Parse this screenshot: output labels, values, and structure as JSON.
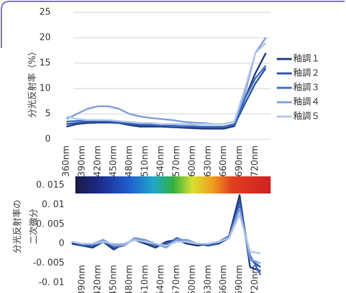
{
  "chart_data": [
    {
      "type": "line",
      "ylabel": "分光反射率（%）",
      "x": [
        360,
        380,
        400,
        420,
        440,
        460,
        480,
        500,
        520,
        540,
        560,
        580,
        600,
        620,
        640,
        660,
        680,
        700,
        720,
        740
      ],
      "xlim": [
        360,
        740
      ],
      "xticks": [
        {
          "value": 360,
          "label": "360nm"
        },
        {
          "value": 390,
          "label": "390nm"
        },
        {
          "value": 420,
          "label": "420nm"
        },
        {
          "value": 450,
          "label": "450nm"
        },
        {
          "value": 480,
          "label": "480nm"
        },
        {
          "value": 510,
          "label": "510nm"
        },
        {
          "value": 540,
          "label": "540nm"
        },
        {
          "value": 570,
          "label": "570nm"
        },
        {
          "value": 600,
          "label": "600nm"
        },
        {
          "value": 630,
          "label": "630nm"
        },
        {
          "value": 660,
          "label": "660nm"
        },
        {
          "value": 690,
          "label": "690nm"
        },
        {
          "value": 720,
          "label": "720nm"
        }
      ],
      "ylim": [
        0,
        25
      ],
      "yticks": [
        0,
        5,
        10,
        15,
        20,
        25
      ],
      "grid": true,
      "legend": "right",
      "series": [
        {
          "name": "釉調１",
          "color": "#1f3a78",
          "values": [
            2.5,
            3,
            3.2,
            3.3,
            3.3,
            3.2,
            2.8,
            2.5,
            2.5,
            2.5,
            2.4,
            2.3,
            2.2,
            2.1,
            2.1,
            2.1,
            2.6,
            8,
            13,
            17
          ]
        },
        {
          "name": "釉調２",
          "color": "#2d56a8",
          "values": [
            3,
            3.2,
            3.4,
            3.5,
            3.4,
            3.2,
            3,
            2.8,
            2.8,
            2.7,
            2.6,
            2.5,
            2.5,
            2.4,
            2.4,
            2.4,
            2.8,
            7,
            11,
            14
          ]
        },
        {
          "name": "釉調３",
          "color": "#3c6cc4",
          "values": [
            3.5,
            3.6,
            3.7,
            3.7,
            3.7,
            3.5,
            3.2,
            3,
            2.9,
            2.8,
            2.7,
            2.6,
            2.6,
            2.5,
            2.5,
            2.5,
            3,
            8,
            12,
            14.5
          ]
        },
        {
          "name": "釉調４",
          "color": "#7f9fd8",
          "values": [
            4,
            5,
            6,
            6.5,
            6.5,
            6,
            5,
            4.5,
            4.2,
            4,
            3.8,
            3.5,
            3.3,
            3.2,
            3,
            3,
            3.5,
            9,
            17,
            20
          ]
        },
        {
          "name": "釉調５",
          "color": "#b4c6ea",
          "values": [
            4.5,
            4,
            3.8,
            3.8,
            3.8,
            3.6,
            3.4,
            3.2,
            3.2,
            3,
            3,
            3,
            3,
            3,
            3,
            3,
            3.5,
            10,
            17,
            19
          ]
        }
      ]
    },
    {
      "type": "line",
      "ylabel": [
        "分光反射率の",
        "二次微分"
      ],
      "x": [
        370,
        390,
        410,
        430,
        450,
        470,
        490,
        510,
        530,
        550,
        570,
        590,
        610,
        630,
        650,
        670,
        690,
        710,
        730
      ],
      "xlim": [
        360,
        740
      ],
      "xticks": [
        {
          "value": 390,
          "label": "390nm"
        },
        {
          "value": 420,
          "label": "420nm"
        },
        {
          "value": 450,
          "label": "450nm"
        },
        {
          "value": 480,
          "label": "480nm"
        },
        {
          "value": 510,
          "label": "510nm"
        },
        {
          "value": 540,
          "label": "540nm"
        },
        {
          "value": 570,
          "label": "570nm"
        },
        {
          "value": 600,
          "label": "600nm"
        },
        {
          "value": 630,
          "label": "630nm"
        },
        {
          "value": 660,
          "label": "660nm"
        },
        {
          "value": 690,
          "label": "690nm"
        },
        {
          "value": 720,
          "label": "720nm"
        }
      ],
      "ylim": [
        -0.0115,
        0.015
      ],
      "yticks": [
        {
          "value": -0.01,
          "label": "-0. 01"
        },
        {
          "value": -0.005,
          "label": "-0. 005"
        },
        0,
        {
          "value": 0.005,
          "label": "0. 005"
        },
        {
          "value": 0.01,
          "label": "0. 01"
        },
        {
          "value": 0.015,
          "label": "0. 015"
        }
      ],
      "grid": false,
      "series": [
        {
          "name": "釉調１",
          "color": "#1f3a78",
          "values": [
            0,
            -0.0005,
            -0.001,
            0.0005,
            -0.0015,
            0,
            0.001,
            0,
            -0.001,
            0.0005,
            0.001,
            0,
            -0.0005,
            0,
            0,
            0.002,
            0.0125,
            -0.006,
            -0.007
          ]
        },
        {
          "name": "釉調２",
          "color": "#2d56a8",
          "values": [
            0.0005,
            -0.0005,
            -0.0005,
            0.001,
            -0.001,
            -0.0005,
            0.0015,
            0.0005,
            -0.0005,
            0,
            0.001,
            0.0005,
            0,
            -0.0005,
            0,
            0.0015,
            0.011,
            -0.004,
            -0.006
          ]
        },
        {
          "name": "釉調３",
          "color": "#3c6cc4",
          "values": [
            0.0005,
            0,
            -0.0005,
            0.0005,
            -0.0005,
            0,
            0.001,
            0.0005,
            -0.0005,
            -0.0005,
            0.0015,
            0.0005,
            0,
            0,
            0.0005,
            0.002,
            0.0095,
            -0.003,
            -0.008
          ]
        },
        {
          "name": "釉調４",
          "color": "#7f9fd8",
          "values": [
            0.0005,
            0,
            0,
            0.001,
            -0.0005,
            -0.0005,
            0.0015,
            0.001,
            0,
            -0.001,
            0.001,
            0.001,
            0,
            0,
            0.0005,
            0.0015,
            0.009,
            -0.004,
            -0.005
          ]
        },
        {
          "name": "釉調５",
          "color": "#b4c6ea",
          "values": [
            0.0005,
            0,
            0,
            0.0005,
            0,
            0,
            0.001,
            0.0005,
            0,
            -0.0005,
            0.0005,
            0.0005,
            0,
            0,
            0.0005,
            0.0015,
            0.0075,
            -0.002,
            -0.0025
          ]
        }
      ]
    }
  ]
}
